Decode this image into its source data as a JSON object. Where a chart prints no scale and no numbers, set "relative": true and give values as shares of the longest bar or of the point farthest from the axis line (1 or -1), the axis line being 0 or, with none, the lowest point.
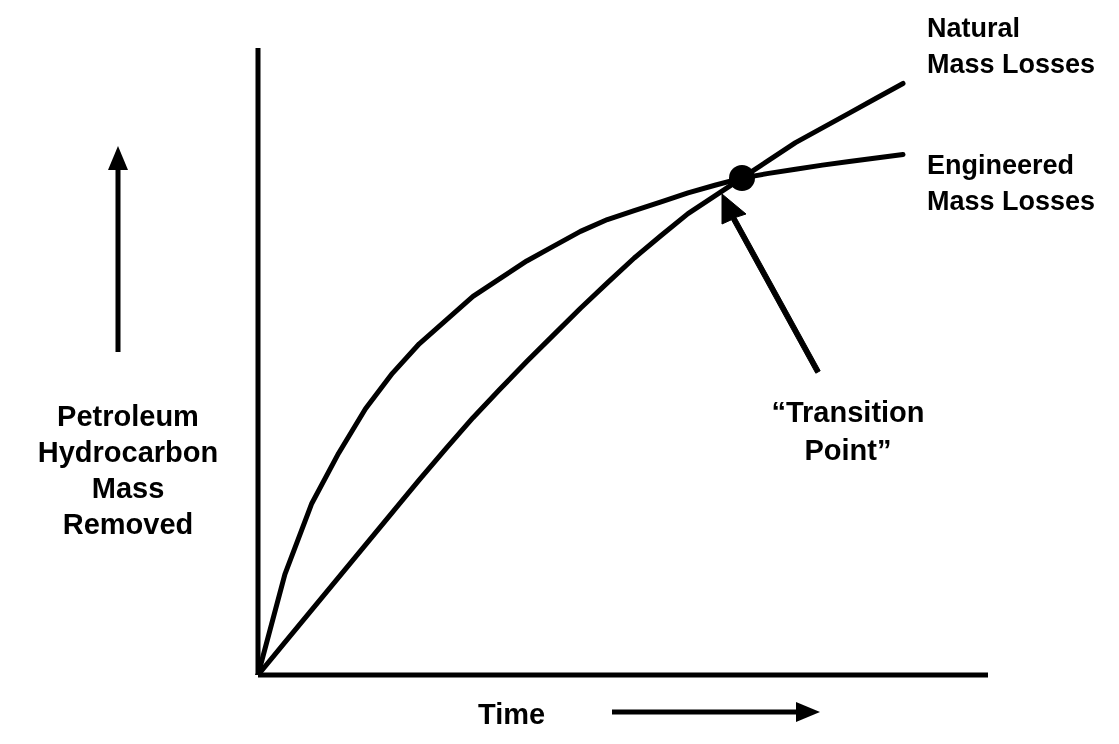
{
  "chart_data": {
    "type": "line",
    "relative": true,
    "xlabel": "Time",
    "ylabel": "Petroleum Hydrocarbon Mass Removed",
    "categories": [
      null,
      null,
      null,
      null,
      null,
      null,
      null,
      null,
      null,
      null,
      null,
      null,
      null,
      null,
      null,
      null,
      null,
      null,
      null,
      null,
      null,
      null,
      null,
      null,
      null
    ],
    "series": [
      {
        "name": "Natural Mass Losses",
        "color": "#000000",
        "values": [
          0,
          0.055,
          0.11,
          0.165,
          0.22,
          0.275,
          0.33,
          0.383,
          0.435,
          0.483,
          0.53,
          0.575,
          0.62,
          0.663,
          0.705,
          0.743,
          0.78,
          0.81,
          0.84,
          0.87,
          0.9,
          0.925,
          0.95,
          0.975,
          1.0
        ]
      },
      {
        "name": "Engineered Mass Losses",
        "color": "#000000",
        "values": [
          0,
          0.17,
          0.29,
          0.375,
          0.45,
          0.51,
          0.56,
          0.6,
          0.64,
          0.67,
          0.7,
          0.725,
          0.75,
          0.77,
          0.785,
          0.8,
          0.815,
          0.828,
          0.84,
          0.848,
          0.855,
          0.862,
          0.868,
          0.874,
          0.88
        ]
      }
    ],
    "annotations": [
      "“Transition Point”"
    ],
    "grid": false,
    "legend": false,
    "marker": "none",
    "line_style": "solid"
  }
}
